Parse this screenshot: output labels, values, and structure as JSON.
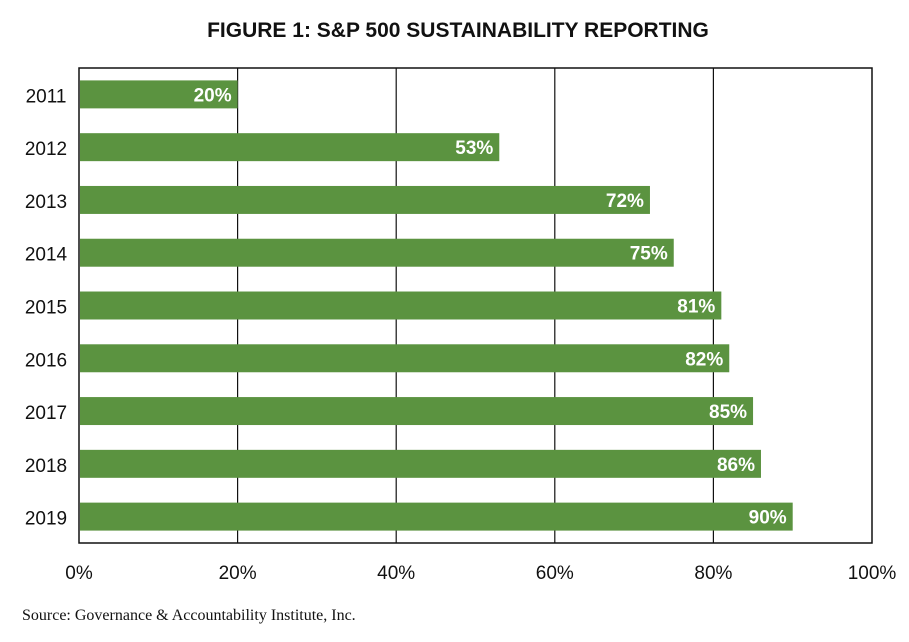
{
  "chart_data": {
    "type": "bar",
    "orientation": "horizontal",
    "title": "FIGURE 1: S&P 500 SUSTAINABILITY REPORTING",
    "categories": [
      "2011",
      "2012",
      "2013",
      "2014",
      "2015",
      "2016",
      "2017",
      "2018",
      "2019"
    ],
    "values": [
      20,
      53,
      72,
      75,
      81,
      82,
      85,
      86,
      90
    ],
    "data_labels": [
      "20%",
      "53%",
      "72%",
      "75%",
      "81%",
      "82%",
      "85%",
      "86%",
      "90%"
    ],
    "xlim": [
      0,
      100
    ],
    "x_ticks": [
      0,
      20,
      40,
      60,
      80,
      100
    ],
    "x_tick_labels": [
      "0%",
      "20%",
      "40%",
      "60%",
      "80%",
      "100%"
    ],
    "grid": "vertical",
    "legend": "none",
    "bar_color": "#5b9340",
    "source": "Source: Governance & Accountability Institute, Inc."
  }
}
